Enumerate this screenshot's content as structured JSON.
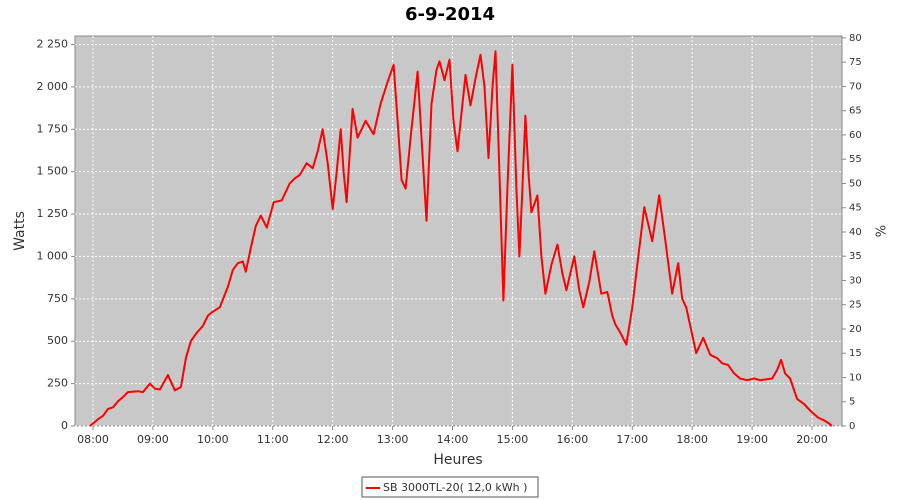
{
  "chart_data": {
    "type": "line",
    "title": "6-9-2014",
    "xlabel": "Heures",
    "ylabel": "Watts",
    "y2label": "%",
    "x": [
      "07:57",
      "08:05",
      "08:10",
      "08:15",
      "08:20",
      "08:25",
      "08:30",
      "08:35",
      "08:45",
      "08:50",
      "08:57",
      "09:02",
      "09:07",
      "09:15",
      "09:22",
      "09:28",
      "09:33",
      "09:38",
      "09:44",
      "09:50",
      "09:55",
      "09:59",
      "10:07",
      "10:15",
      "10:20",
      "10:25",
      "10:30",
      "10:33",
      "10:38",
      "10:43",
      "10:48",
      "10:54",
      "11:01",
      "11:09",
      "11:17",
      "11:22",
      "11:27",
      "11:34",
      "11:40",
      "11:45",
      "11:50",
      "11:55",
      "12:00",
      "12:04",
      "12:08",
      "12:11",
      "12:14",
      "12:20",
      "12:25",
      "12:33",
      "12:41",
      "12:48",
      "12:55",
      "13:01",
      "13:05",
      "13:09",
      "13:13",
      "13:18",
      "13:25",
      "13:30",
      "13:34",
      "13:39",
      "13:44",
      "13:47",
      "13:52",
      "13:57",
      "14:01",
      "14:05",
      "14:13",
      "14:18",
      "14:23",
      "14:28",
      "14:32",
      "14:36",
      "14:40",
      "14:43",
      "14:47",
      "14:51",
      "14:55",
      "15:00",
      "15:04",
      "15:07",
      "15:10",
      "15:13",
      "15:16",
      "15:19",
      "15:25",
      "15:29",
      "15:33",
      "15:39",
      "15:45",
      "15:50",
      "15:54",
      "16:02",
      "16:07",
      "16:11",
      "16:17",
      "16:22",
      "16:29",
      "16:35",
      "16:40",
      "16:43",
      "16:48",
      "16:54",
      "17:00",
      "17:06",
      "17:12",
      "17:20",
      "17:27",
      "17:33",
      "17:40",
      "17:46",
      "17:50",
      "17:54",
      "18:04",
      "18:11",
      "18:18",
      "18:25",
      "18:30",
      "18:36",
      "18:42",
      "18:48",
      "18:55",
      "19:02",
      "19:08",
      "19:14",
      "19:20",
      "19:25",
      "19:29",
      "19:33",
      "19:38",
      "19:45",
      "19:52",
      "20:00",
      "20:06",
      "20:13",
      "20:17",
      "20:20"
    ],
    "series": [
      {
        "name": "SB 3000TL-20( 12,0 kWh )",
        "color": "#ff0000",
        "values": [
          0,
          40,
          60,
          100,
          110,
          145,
          170,
          200,
          205,
          200,
          250,
          220,
          215,
          300,
          210,
          230,
          400,
          500,
          550,
          590,
          650,
          670,
          700,
          820,
          920,
          960,
          970,
          910,
          1050,
          1180,
          1240,
          1170,
          1320,
          1330,
          1430,
          1460,
          1480,
          1550,
          1520,
          1620,
          1750,
          1550,
          1280,
          1500,
          1750,
          1500,
          1320,
          1870,
          1700,
          1800,
          1720,
          1900,
          2030,
          2130,
          1800,
          1450,
          1400,
          1700,
          2090,
          1600,
          1210,
          1900,
          2100,
          2150,
          2040,
          2160,
          1800,
          1620,
          2070,
          1890,
          2050,
          2190,
          2000,
          1580,
          2000,
          2210,
          1500,
          740,
          1400,
          2130,
          1400,
          1000,
          1400,
          1830,
          1500,
          1260,
          1360,
          1000,
          780,
          950,
          1070,
          900,
          800,
          1000,
          800,
          700,
          850,
          1030,
          780,
          790,
          650,
          600,
          550,
          480,
          700,
          1000,
          1290,
          1090,
          1360,
          1100,
          780,
          960,
          750,
          700,
          430,
          520,
          420,
          400,
          370,
          360,
          310,
          280,
          270,
          280,
          270,
          275,
          280,
          330,
          390,
          310,
          280,
          160,
          130,
          80,
          50,
          30,
          15,
          0
        ]
      }
    ],
    "xlim": [
      "07:42",
      "20:30"
    ],
    "xticks": [
      "08:00",
      "09:00",
      "10:00",
      "11:00",
      "12:00",
      "13:00",
      "14:00",
      "15:00",
      "16:00",
      "17:00",
      "18:00",
      "19:00",
      "20:00"
    ],
    "ylim": [
      0,
      2300
    ],
    "yticks": [
      0,
      250,
      500,
      750,
      {
        "value": 1000,
        "label": "1 000"
      },
      {
        "value": 1250,
        "label": "1 250"
      },
      {
        "value": 1500,
        "label": "1 500"
      },
      {
        "value": 1750,
        "label": "1 750"
      },
      {
        "value": 2000,
        "label": "2 000"
      },
      {
        "value": 2250,
        "label": "2 250"
      }
    ],
    "y2lim": [
      0,
      80.4
    ],
    "y2ticks": [
      0,
      5,
      10,
      15,
      20,
      25,
      30,
      35,
      40,
      45,
      50,
      55,
      60,
      65,
      70,
      75,
      80
    ],
    "grid": true,
    "legend": "bottom"
  }
}
